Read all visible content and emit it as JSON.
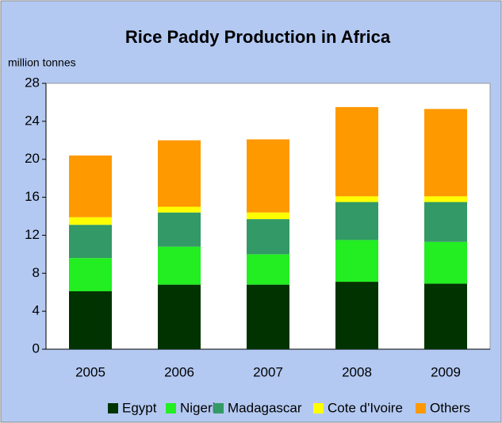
{
  "chart_data": {
    "type": "stacked_bar",
    "title": "Rice Paddy Production in Africa",
    "y_label": "million tonnes",
    "categories": [
      "2005",
      "2006",
      "2007",
      "2008",
      "2009"
    ],
    "series": [
      {
        "name": "Egypt",
        "color": "#003300",
        "values": [
          6.1,
          6.8,
          6.8,
          7.1,
          6.9
        ]
      },
      {
        "name": "Nigeria",
        "color": "#22ee22",
        "values": [
          3.5,
          4.0,
          3.2,
          4.4,
          4.4
        ]
      },
      {
        "name": "Madagascar",
        "color": "#339966",
        "values": [
          3.5,
          3.6,
          3.7,
          4.0,
          4.2
        ]
      },
      {
        "name": "Cote d'Ivoire",
        "color": "#ffff00",
        "values": [
          0.8,
          0.6,
          0.7,
          0.6,
          0.6
        ]
      },
      {
        "name": "Others",
        "color": "#ff9900",
        "values": [
          6.5,
          7.0,
          7.7,
          9.4,
          9.2
        ]
      }
    ],
    "ylim": [
      0,
      28
    ],
    "yticks": [
      0,
      4,
      8,
      12,
      16,
      20,
      24,
      28
    ],
    "grid": false,
    "legend": "bottom"
  }
}
